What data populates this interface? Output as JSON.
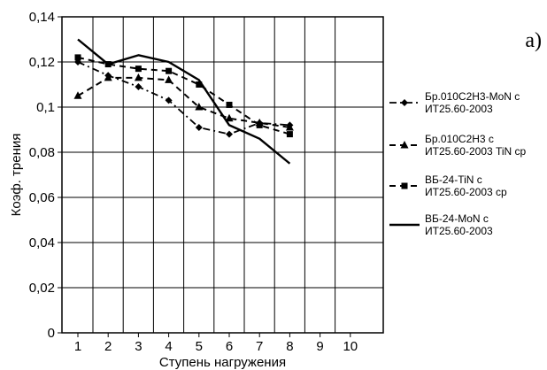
{
  "chart_data": {
    "type": "line",
    "panel_label": "a)",
    "xlabel": "Ступень нагружения",
    "ylabel": "Коэф. трения",
    "x": [
      1,
      2,
      3,
      4,
      5,
      6,
      7,
      8
    ],
    "xticks": [
      "1",
      "2",
      "3",
      "4",
      "5",
      "6",
      "7",
      "8",
      "9",
      "10"
    ],
    "xlim": [
      1,
      10
    ],
    "yticks": [
      "0",
      "0,02",
      "0,04",
      "0,06",
      "0,08",
      "0,1",
      "0,12",
      "0,14"
    ],
    "ylim": [
      0,
      0.14
    ],
    "grid": "both",
    "legend_position": "right",
    "series": [
      {
        "name": [
          "Бр.010С2Н3-MoN с",
          "ИТ25.60-2003"
        ],
        "style": "dashdot",
        "marker": "diamond",
        "values": [
          0.12,
          0.114,
          0.109,
          0.103,
          0.091,
          0.088,
          0.093,
          0.092
        ]
      },
      {
        "name": [
          "Бр.010С2Н3 с",
          "ИТ25.60-2003 TiN ср"
        ],
        "style": "dashed",
        "marker": "triangle",
        "values": [
          0.105,
          0.113,
          0.113,
          0.112,
          0.1,
          0.095,
          0.093,
          0.091
        ]
      },
      {
        "name": [
          "ВБ-24-TiN с",
          "ИТ25.60-2003 ср"
        ],
        "style": "dashed",
        "marker": "square",
        "values": [
          0.122,
          0.119,
          0.117,
          0.116,
          0.11,
          0.101,
          0.092,
          0.088
        ]
      },
      {
        "name": [
          "ВБ-24-MoN с",
          "ИТ25.60-2003"
        ],
        "style": "solid",
        "marker": "none",
        "values": [
          0.13,
          0.119,
          0.123,
          0.12,
          0.112,
          0.092,
          0.086,
          0.075
        ]
      }
    ]
  }
}
